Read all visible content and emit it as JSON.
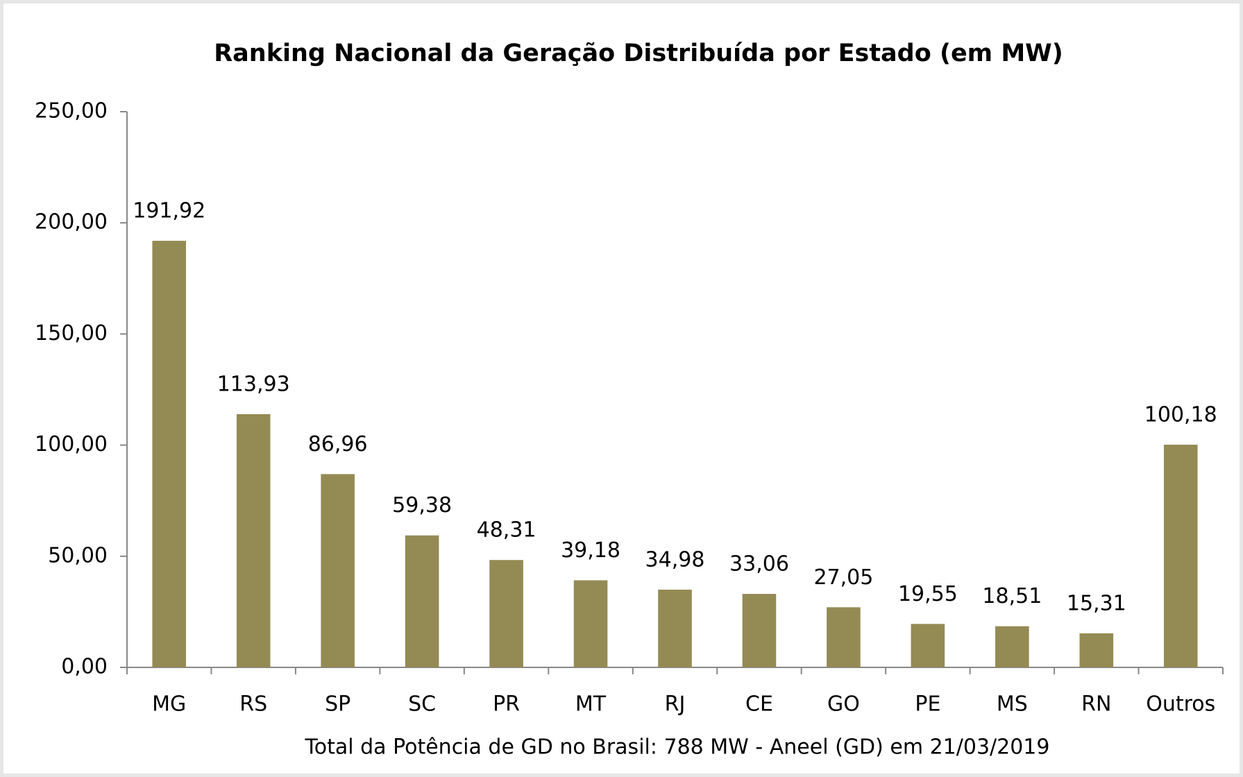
{
  "chart_data": {
    "type": "bar",
    "title": "Ranking Nacional da Geração Distribuída por Estado (em MW)",
    "x_label": "Total da Potência de GD no Brasil: 788 MW - Aneel (GD) em 21/03/2019",
    "categories": [
      "MG",
      "RS",
      "SP",
      "SC",
      "PR",
      "MT",
      "RJ",
      "CE",
      "GO",
      "PE",
      "MS",
      "RN",
      "Outros"
    ],
    "values": [
      191.92,
      113.93,
      86.96,
      59.38,
      48.31,
      39.18,
      34.98,
      33.06,
      27.05,
      19.55,
      18.51,
      15.31,
      100.18
    ],
    "value_labels": [
      "191,92",
      "113,93",
      "86,96",
      "59,38",
      "48,31",
      "39,18",
      "34,98",
      "33,06",
      "27,05",
      "19,55",
      "18,51",
      "15,31",
      "100,18"
    ],
    "color": "#948a54",
    "ylim": [
      0,
      250
    ],
    "yticks": [
      {
        "value": 0,
        "label": "0,00"
      },
      {
        "value": 50,
        "label": "50,00"
      },
      {
        "value": 100,
        "label": "100,00"
      },
      {
        "value": 150,
        "label": "150,00"
      },
      {
        "value": 200,
        "label": "200,00"
      },
      {
        "value": 250,
        "label": "250,00"
      }
    ],
    "grid": false
  }
}
